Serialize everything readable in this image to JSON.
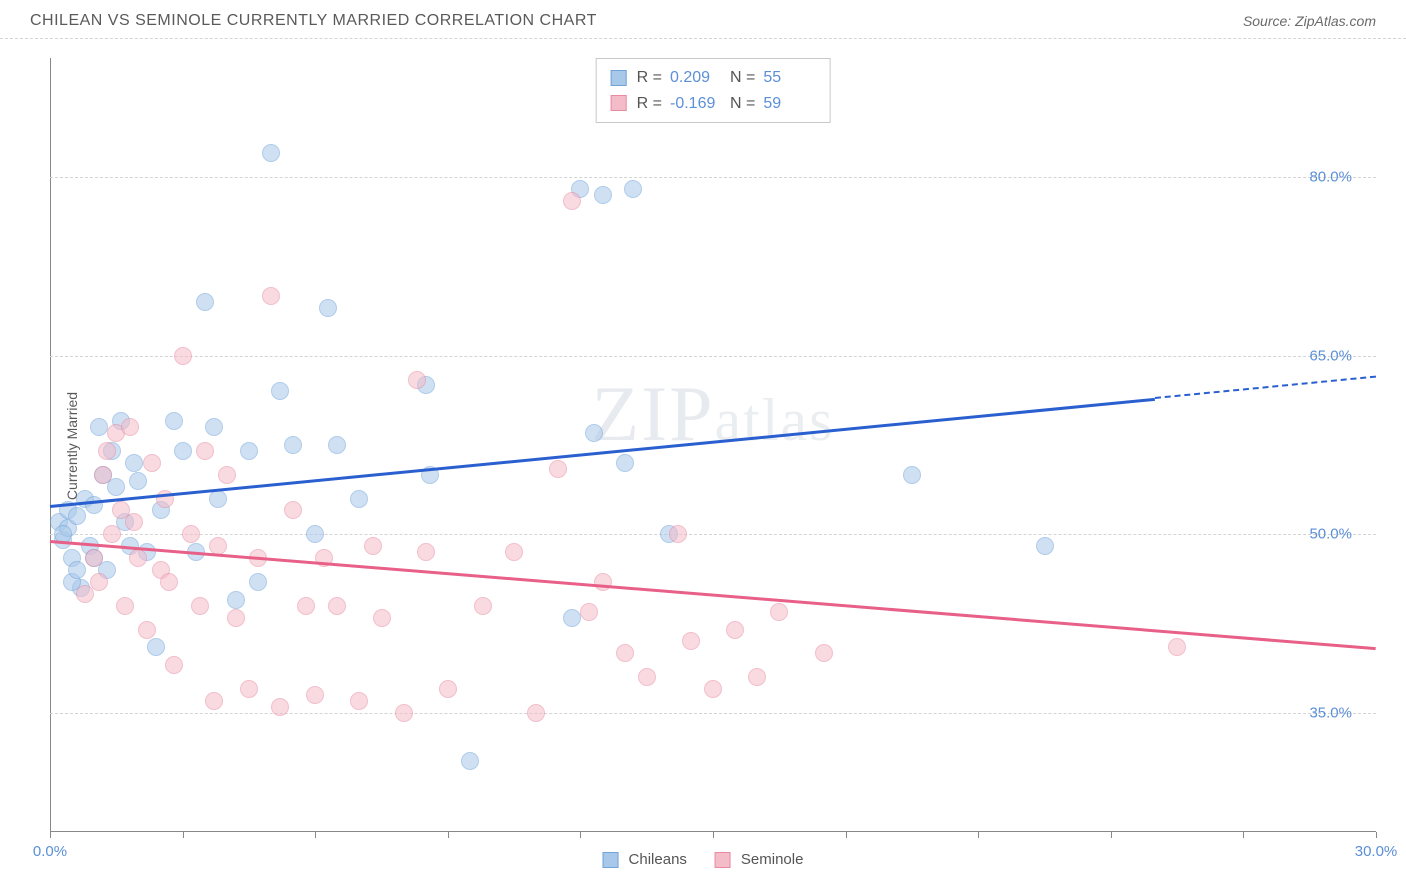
{
  "header": {
    "title": "CHILEAN VS SEMINOLE CURRENTLY MARRIED CORRELATION CHART",
    "source": "Source: ZipAtlas.com"
  },
  "chart": {
    "type": "scatter",
    "ylabel": "Currently Married",
    "watermark": "ZIPatlas",
    "xlim": [
      0,
      30
    ],
    "ylim": [
      25,
      90
    ],
    "xticks": [
      0,
      3,
      6,
      9,
      12,
      15,
      18,
      21,
      24,
      27,
      30
    ],
    "xtick_labels": {
      "0": "0.0%",
      "30": "30.0%"
    },
    "yticks": [
      35,
      50,
      65,
      80
    ],
    "ytick_labels": [
      "35.0%",
      "50.0%",
      "65.0%",
      "80.0%"
    ],
    "background_color": "#ffffff",
    "grid_color": "#d4d4d4",
    "axis_color": "#888888",
    "tick_label_color": "#5b8fd6",
    "point_radius": 9,
    "point_opacity": 0.55,
    "series": [
      {
        "name": "Chileans",
        "fill_color": "#a8c8ea",
        "stroke_color": "#6fa3da",
        "trend_color": "#2a5fd0",
        "R": "0.209",
        "N": "55",
        "trend": {
          "x1": 0,
          "y1": 52.5,
          "x2": 25,
          "y2": 61.5,
          "dash_to_x": 30,
          "dash_to_y": 63.3
        },
        "points": [
          [
            0.2,
            51
          ],
          [
            0.3,
            49.5
          ],
          [
            0.4,
            52
          ],
          [
            0.4,
            50.5
          ],
          [
            0.5,
            48
          ],
          [
            0.6,
            51.5
          ],
          [
            0.7,
            45.5
          ],
          [
            0.8,
            53
          ],
          [
            0.9,
            49
          ],
          [
            1.0,
            48
          ],
          [
            1.1,
            59
          ],
          [
            1.2,
            55
          ],
          [
            1.3,
            47
          ],
          [
            1.4,
            57
          ],
          [
            1.5,
            54
          ],
          [
            1.6,
            59.5
          ],
          [
            1.8,
            49
          ],
          [
            1.9,
            56
          ],
          [
            2.0,
            54.5
          ],
          [
            2.2,
            48.5
          ],
          [
            2.4,
            40.5
          ],
          [
            2.5,
            52
          ],
          [
            2.8,
            59.5
          ],
          [
            3.0,
            57
          ],
          [
            3.3,
            48.5
          ],
          [
            3.5,
            69.5
          ],
          [
            3.7,
            59
          ],
          [
            3.8,
            53
          ],
          [
            4.2,
            44.5
          ],
          [
            4.5,
            57
          ],
          [
            4.7,
            46
          ],
          [
            5.0,
            82
          ],
          [
            5.2,
            62
          ],
          [
            5.5,
            57.5
          ],
          [
            6.0,
            50
          ],
          [
            6.3,
            69
          ],
          [
            6.5,
            57.5
          ],
          [
            7.0,
            53
          ],
          [
            8.5,
            62.5
          ],
          [
            8.6,
            55
          ],
          [
            9.5,
            31
          ],
          [
            11.8,
            43
          ],
          [
            12.0,
            79
          ],
          [
            12.3,
            58.5
          ],
          [
            12.5,
            78.5
          ],
          [
            13.0,
            56
          ],
          [
            13.2,
            79
          ],
          [
            14.0,
            50
          ],
          [
            19.5,
            55
          ],
          [
            22.5,
            49
          ],
          [
            1.0,
            52.5
          ],
          [
            0.5,
            46
          ],
          [
            0.3,
            50
          ],
          [
            0.6,
            47
          ],
          [
            1.7,
            51
          ]
        ]
      },
      {
        "name": "Seminole",
        "fill_color": "#f3bcc8",
        "stroke_color": "#e88ba2",
        "trend_color": "#e85f88",
        "R": "-0.169",
        "N": "59",
        "trend": {
          "x1": 0,
          "y1": 49.5,
          "x2": 30,
          "y2": 40.5
        },
        "points": [
          [
            0.8,
            45
          ],
          [
            1.0,
            48
          ],
          [
            1.2,
            55
          ],
          [
            1.3,
            57
          ],
          [
            1.4,
            50
          ],
          [
            1.5,
            58.5
          ],
          [
            1.6,
            52
          ],
          [
            1.7,
            44
          ],
          [
            1.8,
            59
          ],
          [
            2.0,
            48
          ],
          [
            2.2,
            42
          ],
          [
            2.3,
            56
          ],
          [
            2.5,
            47
          ],
          [
            2.6,
            53
          ],
          [
            2.8,
            39
          ],
          [
            3.0,
            65
          ],
          [
            3.2,
            50
          ],
          [
            3.4,
            44
          ],
          [
            3.5,
            57
          ],
          [
            3.7,
            36
          ],
          [
            3.8,
            49
          ],
          [
            4.0,
            55
          ],
          [
            4.2,
            43
          ],
          [
            4.5,
            37
          ],
          [
            4.7,
            48
          ],
          [
            5.0,
            70
          ],
          [
            5.2,
            35.5
          ],
          [
            5.5,
            52
          ],
          [
            5.8,
            44
          ],
          [
            6.0,
            36.5
          ],
          [
            6.2,
            48
          ],
          [
            6.5,
            44
          ],
          [
            7.0,
            36
          ],
          [
            7.3,
            49
          ],
          [
            7.5,
            43
          ],
          [
            8.0,
            35
          ],
          [
            8.3,
            63
          ],
          [
            8.5,
            48.5
          ],
          [
            9.0,
            37
          ],
          [
            9.8,
            44
          ],
          [
            10.5,
            48.5
          ],
          [
            11.0,
            35
          ],
          [
            11.5,
            55.5
          ],
          [
            11.8,
            78
          ],
          [
            12.2,
            43.5
          ],
          [
            12.5,
            46
          ],
          [
            13.0,
            40
          ],
          [
            13.5,
            38
          ],
          [
            14.2,
            50
          ],
          [
            14.5,
            41
          ],
          [
            15.0,
            37
          ],
          [
            15.5,
            42
          ],
          [
            16.0,
            38
          ],
          [
            16.5,
            43.5
          ],
          [
            17.5,
            40
          ],
          [
            25.5,
            40.5
          ],
          [
            1.1,
            46
          ],
          [
            1.9,
            51
          ],
          [
            2.7,
            46
          ]
        ]
      }
    ],
    "legend_bottom": [
      {
        "label": "Chileans",
        "fill": "#a8c8ea",
        "stroke": "#6fa3da"
      },
      {
        "label": "Seminole",
        "fill": "#f3bcc8",
        "stroke": "#e88ba2"
      }
    ]
  }
}
